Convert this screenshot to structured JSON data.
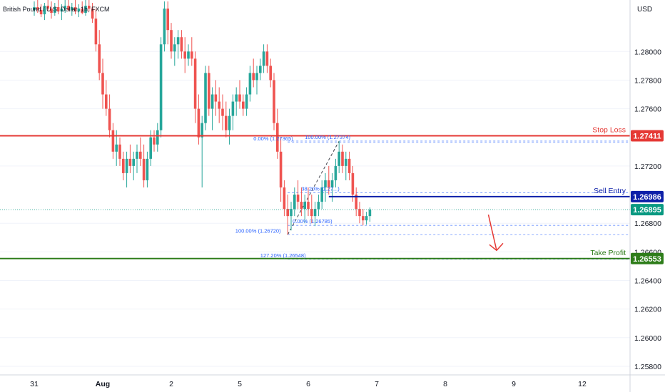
{
  "header": {
    "title": "British Pound / U.S. Dollar, 1h, FXCM",
    "currency": "USD"
  },
  "colors": {
    "up": "#26a69a",
    "down": "#ef5350",
    "stop": "#e53935",
    "entry": "#0d1fa8",
    "target": "#2e7d1a",
    "fib": "#2962ff",
    "current": "#089981",
    "arrow": "#e53935"
  },
  "chart_data": {
    "type": "candlestick",
    "ylim": [
      1.2574,
      1.2836
    ],
    "y_ticks": [
      {
        "v": 1.28,
        "label": "1.28000"
      },
      {
        "v": 1.278,
        "label": "1.27800"
      },
      {
        "v": 1.276,
        "label": "1.27600"
      },
      {
        "v": 1.272,
        "label": "1.27200"
      },
      {
        "v": 1.268,
        "label": "1.26800"
      },
      {
        "v": 1.266,
        "label": "1.26600"
      },
      {
        "v": 1.264,
        "label": "1.26400"
      },
      {
        "v": 1.262,
        "label": "1.26200"
      },
      {
        "v": 1.26,
        "label": "1.26000"
      },
      {
        "v": 1.258,
        "label": "1.25800"
      }
    ],
    "x_ticks": [
      {
        "label": "31",
        "pos": 0.0
      },
      {
        "label": "Aug",
        "pos": 1.0
      },
      {
        "label": "2",
        "pos": 2.0
      },
      {
        "label": "5",
        "pos": 3.0
      },
      {
        "label": "6",
        "pos": 4.0
      },
      {
        "label": "7",
        "pos": 5.0
      },
      {
        "label": "8",
        "pos": 6.0
      },
      {
        "label": "9",
        "pos": 7.0
      },
      {
        "label": "12",
        "pos": 8.0
      }
    ],
    "candles": [
      [
        0.0,
        1.2829,
        1.2835,
        1.2825,
        1.2831
      ],
      [
        0.05,
        1.2831,
        1.2836,
        1.2827,
        1.2829
      ],
      [
        0.1,
        1.2829,
        1.2833,
        1.2824,
        1.2826
      ],
      [
        0.15,
        1.2826,
        1.2834,
        1.2822,
        1.2832
      ],
      [
        0.2,
        1.2832,
        1.2836,
        1.2828,
        1.283
      ],
      [
        0.25,
        1.283,
        1.2835,
        1.2823,
        1.2827
      ],
      [
        0.3,
        1.2827,
        1.2834,
        1.2825,
        1.2831
      ],
      [
        0.35,
        1.2831,
        1.2836,
        1.2826,
        1.2828
      ],
      [
        0.4,
        1.2828,
        1.2833,
        1.2822,
        1.283
      ],
      [
        0.45,
        1.283,
        1.2836,
        1.2827,
        1.2832
      ],
      [
        0.5,
        1.2832,
        1.2836,
        1.2828,
        1.2829
      ],
      [
        0.55,
        1.2829,
        1.2834,
        1.2825,
        1.2831
      ],
      [
        0.6,
        1.2831,
        1.2836,
        1.2826,
        1.2828
      ],
      [
        0.65,
        1.2828,
        1.2833,
        1.2824,
        1.283
      ],
      [
        0.7,
        1.283,
        1.2835,
        1.2826,
        1.2827
      ],
      [
        0.75,
        1.2827,
        1.2836,
        1.2825,
        1.2832
      ],
      [
        0.8,
        1.2832,
        1.2836,
        1.2828,
        1.283
      ],
      [
        0.85,
        1.283,
        1.2834,
        1.282,
        1.2823
      ],
      [
        0.9,
        1.2823,
        1.283,
        1.28,
        1.2805
      ],
      [
        0.95,
        1.2805,
        1.2815,
        1.278,
        1.2785
      ],
      [
        1.0,
        1.2785,
        1.2795,
        1.276,
        1.277
      ],
      [
        1.05,
        1.277,
        1.278,
        1.2755,
        1.276
      ],
      [
        1.1,
        1.276,
        1.277,
        1.274,
        1.2745
      ],
      [
        1.15,
        1.2745,
        1.275,
        1.2725,
        1.273
      ],
      [
        1.2,
        1.273,
        1.2745,
        1.272,
        1.2735
      ],
      [
        1.25,
        1.2735,
        1.274,
        1.272,
        1.2725
      ],
      [
        1.3,
        1.2725,
        1.273,
        1.271,
        1.2715
      ],
      [
        1.35,
        1.2715,
        1.273,
        1.2705,
        1.2725
      ],
      [
        1.4,
        1.2725,
        1.2735,
        1.2715,
        1.272
      ],
      [
        1.45,
        1.272,
        1.273,
        1.271,
        1.2725
      ],
      [
        1.5,
        1.2725,
        1.2735,
        1.2715,
        1.273
      ],
      [
        1.55,
        1.273,
        1.274,
        1.272,
        1.2725
      ],
      [
        1.6,
        1.2725,
        1.2735,
        1.2705,
        1.271
      ],
      [
        1.65,
        1.271,
        1.273,
        1.2705,
        1.2725
      ],
      [
        1.7,
        1.2725,
        1.2745,
        1.272,
        1.274
      ],
      [
        1.75,
        1.274,
        1.2745,
        1.273,
        1.2735
      ],
      [
        1.8,
        1.2735,
        1.275,
        1.273,
        1.2745
      ],
      [
        1.85,
        1.2745,
        1.281,
        1.274,
        1.2805
      ],
      [
        1.9,
        1.2805,
        1.2835,
        1.28,
        1.283
      ],
      [
        1.95,
        1.283,
        1.2835,
        1.2805,
        1.2815
      ],
      [
        2.0,
        1.2815,
        1.282,
        1.2795,
        1.28
      ],
      [
        2.05,
        1.28,
        1.281,
        1.279,
        1.2805
      ],
      [
        2.1,
        1.2805,
        1.2815,
        1.2795,
        1.281
      ],
      [
        2.15,
        1.281,
        1.2815,
        1.2795,
        1.28
      ],
      [
        2.2,
        1.28,
        1.281,
        1.2785,
        1.2795
      ],
      [
        2.25,
        1.2795,
        1.2805,
        1.279,
        1.28
      ],
      [
        2.3,
        1.28,
        1.281,
        1.279,
        1.2795
      ],
      [
        2.35,
        1.2795,
        1.28,
        1.275,
        1.276
      ],
      [
        2.4,
        1.276,
        1.277,
        1.2735,
        1.274
      ],
      [
        2.45,
        1.274,
        1.2755,
        1.2705,
        1.275
      ],
      [
        2.5,
        1.275,
        1.279,
        1.2745,
        1.2785
      ],
      [
        2.55,
        1.2785,
        1.279,
        1.2755,
        1.276
      ],
      [
        2.6,
        1.276,
        1.2775,
        1.2745,
        1.277
      ],
      [
        2.65,
        1.277,
        1.278,
        1.2755,
        1.2765
      ],
      [
        2.7,
        1.2765,
        1.2775,
        1.275,
        1.276
      ],
      [
        2.75,
        1.276,
        1.277,
        1.2745,
        1.2755
      ],
      [
        2.8,
        1.2755,
        1.2765,
        1.274,
        1.2745
      ],
      [
        2.85,
        1.2745,
        1.276,
        1.2735,
        1.2755
      ],
      [
        2.9,
        1.2755,
        1.277,
        1.2745,
        1.2765
      ],
      [
        2.95,
        1.2765,
        1.2775,
        1.2755,
        1.277
      ],
      [
        3.0,
        1.277,
        1.278,
        1.276,
        1.2765
      ],
      [
        3.05,
        1.2765,
        1.277,
        1.2755,
        1.276
      ],
      [
        3.1,
        1.276,
        1.2775,
        1.2755,
        1.277
      ],
      [
        3.15,
        1.277,
        1.279,
        1.2765,
        1.2785
      ],
      [
        3.2,
        1.2785,
        1.2795,
        1.2775,
        1.278
      ],
      [
        3.25,
        1.278,
        1.279,
        1.277,
        1.2785
      ],
      [
        3.3,
        1.2785,
        1.2795,
        1.278,
        1.279
      ],
      [
        3.35,
        1.279,
        1.2805,
        1.2785,
        1.28
      ],
      [
        3.4,
        1.28,
        1.2805,
        1.2785,
        1.279
      ],
      [
        3.45,
        1.279,
        1.2795,
        1.2775,
        1.278
      ],
      [
        3.5,
        1.278,
        1.2785,
        1.2745,
        1.275
      ],
      [
        3.55,
        1.275,
        1.276,
        1.2725,
        1.273
      ],
      [
        3.6,
        1.273,
        1.274,
        1.2695,
        1.2705
      ],
      [
        3.65,
        1.2705,
        1.271,
        1.2685,
        1.269
      ],
      [
        3.7,
        1.269,
        1.27,
        1.2672,
        1.2685
      ],
      [
        3.75,
        1.2685,
        1.2695,
        1.2675,
        1.269
      ],
      [
        3.8,
        1.269,
        1.2705,
        1.2685,
        1.27
      ],
      [
        3.85,
        1.27,
        1.271,
        1.269,
        1.2695
      ],
      [
        3.9,
        1.2695,
        1.2705,
        1.2685,
        1.269
      ],
      [
        3.95,
        1.269,
        1.27,
        1.268,
        1.2695
      ],
      [
        4.0,
        1.2695,
        1.2705,
        1.2685,
        1.269
      ],
      [
        4.05,
        1.269,
        1.27,
        1.268,
        1.2685
      ],
      [
        4.1,
        1.2685,
        1.2695,
        1.2678,
        1.269
      ],
      [
        4.15,
        1.269,
        1.27,
        1.2685,
        1.2695
      ],
      [
        4.2,
        1.2695,
        1.271,
        1.269,
        1.2705
      ],
      [
        4.25,
        1.2705,
        1.2715,
        1.2695,
        1.271
      ],
      [
        4.3,
        1.271,
        1.272,
        1.27,
        1.2705
      ],
      [
        4.35,
        1.2705,
        1.2715,
        1.2695,
        1.271
      ],
      [
        4.4,
        1.271,
        1.2725,
        1.2705,
        1.272
      ],
      [
        4.45,
        1.272,
        1.27374,
        1.2715,
        1.273
      ],
      [
        4.5,
        1.273,
        1.2735,
        1.2715,
        1.272
      ],
      [
        4.55,
        1.272,
        1.273,
        1.271,
        1.2725
      ],
      [
        4.6,
        1.2725,
        1.273,
        1.271,
        1.2715
      ],
      [
        4.65,
        1.2715,
        1.272,
        1.2695,
        1.27
      ],
      [
        4.7,
        1.27,
        1.2705,
        1.2685,
        1.269
      ],
      [
        4.75,
        1.269,
        1.2695,
        1.268,
        1.2685
      ],
      [
        4.8,
        1.2685,
        1.269,
        1.26785,
        1.2682
      ],
      [
        4.85,
        1.2682,
        1.2688,
        1.2679,
        1.2685
      ],
      [
        4.9,
        1.2685,
        1.2691,
        1.2681,
        1.26895
      ]
    ],
    "levels": [
      {
        "name": "Stop Loss",
        "value": 1.27411,
        "label": "1.27411",
        "color_key": "stop"
      },
      {
        "name": "Sell Entry",
        "value": 1.26986,
        "label": "1.26986",
        "color_key": "entry"
      },
      {
        "name": "Take Profit",
        "value": 1.26553,
        "label": "1.26553",
        "color_key": "target"
      }
    ],
    "current_price": {
      "value": 1.26895,
      "label": "1.26895"
    },
    "fib_labels": [
      {
        "text": "0.00% (1.27365)",
        "value": 1.27365
      },
      {
        "text": "100.00% (1.27374)",
        "value": 1.27374
      },
      {
        "text": "38.20% (1.27...)",
        "value": 1.27013
      },
      {
        "text": "100.00% (1.26720)",
        "value": 1.2672
      },
      {
        "text": "0.00% (1.26785)",
        "value": 1.26785
      },
      {
        "text": "127.20% (1.26548)",
        "value": 1.26548
      }
    ]
  }
}
